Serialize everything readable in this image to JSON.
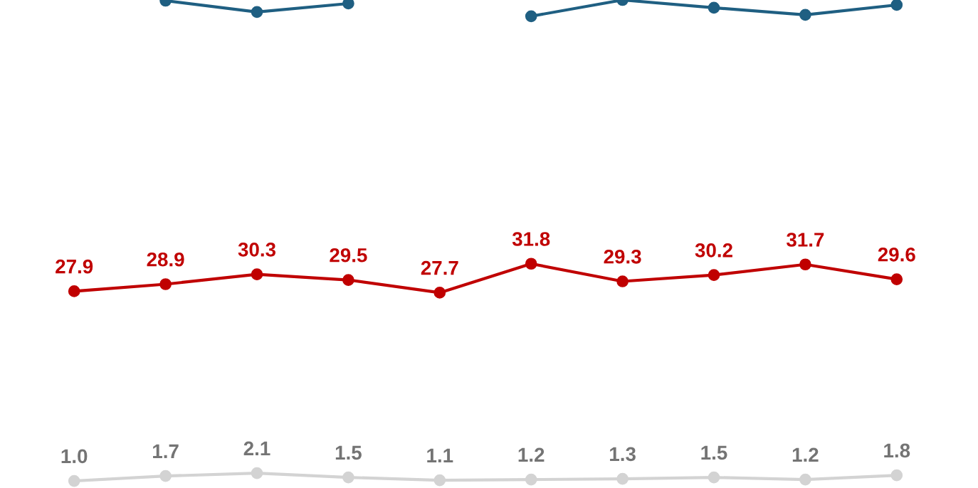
{
  "chart_data": {
    "type": "line",
    "categories": [
      null,
      null,
      null,
      null,
      null,
      null,
      null,
      null,
      null,
      null
    ],
    "grid": false,
    "legend": false,
    "marker": "circle",
    "line_style": "solid",
    "series": [
      {
        "color": "#1f5f82",
        "values": [
          null,
          69.1,
          67.5,
          68.7,
          null,
          66.9,
          69.2,
          68.1,
          67.1,
          68.5
        ],
        "value_labels": [
          null,
          null,
          null,
          null,
          null,
          null,
          null,
          null,
          null,
          null
        ]
      },
      {
        "color": "#c00000",
        "values": [
          27.9,
          28.9,
          30.3,
          29.5,
          27.7,
          31.8,
          29.3,
          30.2,
          31.7,
          29.6
        ],
        "value_labels": [
          "27.9",
          "28.9",
          "30.3",
          "29.5",
          "27.7",
          "31.8",
          "29.3",
          "30.2",
          "31.7",
          "29.6"
        ]
      },
      {
        "color": "#d3d3d3",
        "values": [
          1.0,
          1.7,
          2.1,
          1.5,
          1.1,
          1.2,
          1.3,
          1.5,
          1.2,
          1.8
        ],
        "value_labels": [
          "1.0",
          "1.7",
          "2.1",
          "1.5",
          "1.1",
          "1.2",
          "1.3",
          "1.5",
          "1.2",
          "1.8"
        ]
      }
    ]
  }
}
